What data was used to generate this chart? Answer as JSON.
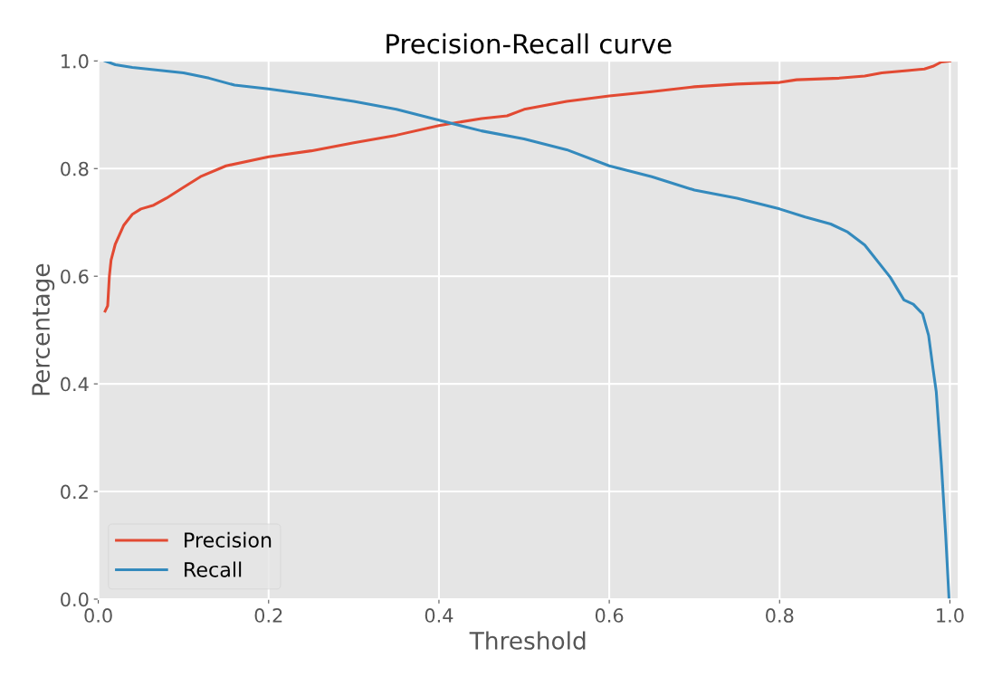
{
  "chart_data": {
    "type": "line",
    "title": "Precision-Recall curve",
    "xlabel": "Threshold",
    "ylabel": "Percentage",
    "xlim": [
      0,
      1.01
    ],
    "ylim": [
      0,
      1.0
    ],
    "xticks": [
      {
        "value": 0,
        "label": "0.0"
      },
      0.2,
      0.4,
      0.6,
      0.8,
      {
        "value": 1,
        "label": "1.0"
      }
    ],
    "yticks": [
      {
        "value": 0,
        "label": "0.0"
      },
      0.2,
      0.4,
      0.6,
      0.8,
      {
        "value": 1,
        "label": "1.0"
      }
    ],
    "grid": true,
    "legend": "bottom left",
    "marker": "none",
    "line_style": "solid",
    "series": [
      {
        "name": "Precision",
        "color": "#e24a33",
        "x": [
          0.008,
          0.011,
          0.013,
          0.015,
          0.02,
          0.03,
          0.04,
          0.05,
          0.065,
          0.08,
          0.1,
          0.12,
          0.15,
          0.2,
          0.25,
          0.3,
          0.35,
          0.4,
          0.45,
          0.48,
          0.5,
          0.55,
          0.6,
          0.65,
          0.7,
          0.75,
          0.8,
          0.82,
          0.87,
          0.9,
          0.92,
          0.95,
          0.97,
          0.98,
          0.99,
          1.0
        ],
        "values": [
          0.535,
          0.545,
          0.6,
          0.63,
          0.66,
          0.695,
          0.715,
          0.725,
          0.732,
          0.745,
          0.765,
          0.785,
          0.805,
          0.822,
          0.833,
          0.848,
          0.862,
          0.88,
          0.893,
          0.898,
          0.91,
          0.925,
          0.935,
          0.943,
          0.952,
          0.957,
          0.96,
          0.965,
          0.968,
          0.972,
          0.978,
          0.982,
          0.985,
          0.99,
          0.998,
          1.0
        ]
      },
      {
        "name": "Recall",
        "color": "#348abd",
        "x": [
          0.008,
          0.02,
          0.04,
          0.07,
          0.1,
          0.13,
          0.16,
          0.2,
          0.25,
          0.3,
          0.35,
          0.4,
          0.45,
          0.5,
          0.55,
          0.6,
          0.65,
          0.7,
          0.75,
          0.8,
          0.83,
          0.86,
          0.88,
          0.9,
          0.93,
          0.946,
          0.957,
          0.968,
          0.975,
          0.98,
          0.984,
          0.99,
          0.995,
          0.999
        ],
        "values": [
          1.0,
          0.993,
          0.988,
          0.983,
          0.978,
          0.968,
          0.955,
          0.948,
          0.937,
          0.925,
          0.91,
          0.89,
          0.87,
          0.855,
          0.835,
          0.805,
          0.785,
          0.76,
          0.745,
          0.725,
          0.71,
          0.697,
          0.682,
          0.658,
          0.598,
          0.556,
          0.548,
          0.53,
          0.49,
          0.43,
          0.385,
          0.25,
          0.12,
          0.0
        ]
      }
    ]
  }
}
